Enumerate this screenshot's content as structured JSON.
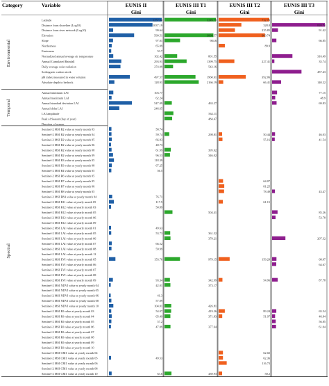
{
  "header": {
    "category": "Category",
    "variable": "Variable",
    "gini": "Gini"
  },
  "colors": {
    "EUNIS II": "#1f5fa6",
    "EUNIS III T1": "#2ca82c",
    "EUNIS III T2": "#f0601e",
    "EUNIS III T3": "#8e1e8e"
  },
  "categories": [
    {
      "name": "Environmental",
      "start": 0,
      "end": 13
    },
    {
      "name": "Temporal",
      "start": 14,
      "end": 20
    },
    {
      "name": "Spectral",
      "start": 21,
      "end": 68
    }
  ],
  "chart_data": {
    "type": "bar",
    "orientation": "horizontal",
    "value_label": "Gini",
    "categories": [
      "Latitude",
      "Distance from shoreline (Log10)",
      "Distance from river network (Log10)",
      "Elevation",
      "Slope",
      "Northerness",
      "Easterness",
      "Normalized annual average air temperature",
      "Annual Cumulated Rainfall",
      "Daily average solar radiation",
      "Soilorganic carbon stock",
      "pH index measured in water solution",
      "Absolute depth to bedrock",
      "",
      "Annual minimum LAI",
      "Annual maximum LAI",
      "Annual standard deviation LAI",
      "Annual delta LAI",
      "LAI amplitude",
      "Peak of Season (day of year)",
      "Duration of season",
      "Sentinel-2 MSI B2 value at yearly month 03",
      "Sentinel-2 MSI B2 value at yearly month 04",
      "Sentinel-2 MSI B2 value at yearly month 05",
      "Sentinel-2 MSI B2 value at yearly month 06",
      "Sentinel-2 MSI B2 value at yearly month 08",
      "Sentinel-2 MSI B2 value at yearly month 09",
      "Sentinel-2 MSI B3 value at yearly month 05",
      "Sentinel-2 MSI B3 value at yearly month 08",
      "Sentinel-2 MSI B4 value at yearly month 05",
      "Sentinel-2 MSI B6 value at yearly month 05",
      "Sentinel-2 MSI B7 value at yearly month 05",
      "Sentinel-2 MSI B7 value at yearly month 06",
      "Sentinel-2 MSI B8 value at yearly month 05",
      "Sentinel-2 MSI B8A value at yearly month 04",
      "Sentinel-2 MSI B11 value at yearly month 05",
      "Sentinel-2 MSI B12 value at yearly month 03",
      "Sentinel-2 MSI B12 value at yearly month 05",
      "Sentinel-2 MSI B12 value at yearly month 06",
      "Sentinel-2 MSI B12 value at yearly month 09",
      "Sentinel-2 MSI LAI value at yearly month 01",
      "Sentinel-2 MSI LAI value at yearly month 05",
      "Sentinel-2 MSI LAI value at yearly month 06",
      "Sentinel-2 MSI LAI value at yearly month 07",
      "Sentinel-2 MSI LAI value at yearly month 08",
      "Sentinel-2 MSI LAI value at yearly month 12",
      "Sentinel-2 MSI EVI value at yearly month 05",
      "Sentinel-2 MSI EVI value at yearly month 06",
      "Sentinel-2 MSI EVI value at yearly month 07",
      "Sentinel-2 MSI EVI value at yearly month 08",
      "Sentinel-2 MSI EVI value at yearly month 09",
      "Sentinel-2 MSI NDVI value at yearly month 04",
      "Sentinel-2 MSI NDVI value at yearly month 05",
      "Sentinel-2 MSI NDVI value at yearly month 06",
      "Sentinel-2 MSI NDVI value at yearly month 08",
      "Sentinel-2 MSI NDVI value at yearly month 10",
      "Sentinel-2 MSI RI value at yearly month 03",
      "Sentinel-2 MSI RI value at yearly month 04",
      "Sentinel-2 MSI RI value at yearly month 05",
      "Sentinel-2 MSI RI value at yearly month 06",
      "Sentinel-2 MSI RI value at yearly month 07",
      "Sentinel-2 MSI RI value at yearly month 08",
      "Sentinel-2 MSI RI value at yearly month 09",
      "Sentinel-2 MSI RI value at yearly month 10",
      "Sentinel-2 MSI CRI1 value at yearly month 04",
      "Sentinel-2 MSI CRI1 value at yearly month 05",
      "Sentinel-2 MSI CRI1 value at yearly month 06",
      "Sentinel-2 MSI CRI1 value at yearly month 08",
      "Sentinel-2 MSI CRI1 value at yearly month 10"
    ],
    "series": [
      {
        "name": "EUNIS II",
        "max": 1257.04,
        "values": [
          1257.04,
          1037.19,
          99.64,
          599.51,
          97.01,
          65.09,
          53.7,
          102.42,
          293.91,
          274.09,
          null,
          497.57,
          128.91,
          null,
          103.77,
          62.24,
          547.09,
          246.65,
          null,
          null,
          null,
          58.74,
          59.74,
          66.83,
          48.73,
          61.99,
          96.53,
          118.39,
          67.25,
          56.5,
          null,
          null,
          null,
          null,
          76.71,
          117.5,
          50.89,
          null,
          null,
          null,
          49.63,
          53.73,
          null,
          66.52,
          59.99,
          null,
          153.76,
          null,
          null,
          null,
          93.34,
          42.01,
          null,
          41.3,
          57.09,
          104.01,
          54.07,
          65.49,
          57.2,
          47.09,
          null,
          null,
          null,
          null,
          null,
          49.53,
          null,
          null,
          63.6
        ]
      },
      {
        "name": "EUNIS III T1",
        "max": 3249.79,
        "values": [
          3249.79,
          null,
          null,
          3094.57,
          984.6,
          null,
          null,
          801.55,
          1399.75,
          542.16,
          null,
          1960.61,
          2166.19,
          null,
          null,
          null,
          463.27,
          null,
          562.11,
          484.47,
          null,
          null,
          298.81,
          null,
          null,
          395.62,
          346.02,
          null,
          null,
          null,
          null,
          null,
          null,
          null,
          null,
          null,
          null,
          504.41,
          null,
          null,
          null,
          361.32,
          379.21,
          null,
          null,
          null,
          979.15,
          null,
          null,
          null,
          342.99,
          373.17,
          null,
          null,
          null,
          426.81,
          419.26,
          371.83,
          null,
          377.64,
          null,
          null,
          null,
          null,
          null,
          null,
          null,
          null,
          439.93
        ]
      },
      {
        "name": "EUNIS III T2",
        "max": 732.79,
        "values": [
          732.79,
          328.8,
          235.85,
          669.74,
          null,
          89.9,
          null,
          null,
          227.41,
          null,
          null,
          392.06,
          66.41,
          null,
          null,
          null,
          null,
          null,
          null,
          null,
          null,
          null,
          50.44,
          55.16,
          null,
          null,
          null,
          null,
          null,
          null,
          null,
          64.07,
          81.25,
          78.49,
          null,
          61.15,
          null,
          null,
          null,
          null,
          null,
          null,
          null,
          null,
          null,
          null,
          159.29,
          null,
          null,
          null,
          54.96,
          null,
          null,
          null,
          null,
          null,
          89.24,
          51.97,
          null,
          null,
          null,
          null,
          null,
          null,
          62.02,
          62.36,
          116.73,
          null,
          50.2
        ]
      },
      {
        "name": "EUNIS III T3",
        "max": 820.74,
        "values": [
          null,
          820.74,
          91.42,
          null,
          66.85,
          null,
          null,
          316.49,
          35.74,
          null,
          457.43,
          null,
          140.22,
          null,
          77.15,
          48.9,
          69.83,
          null,
          null,
          null,
          null,
          null,
          46.03,
          41.54,
          null,
          null,
          null,
          null,
          null,
          null,
          null,
          null,
          null,
          43.47,
          null,
          null,
          null,
          85.26,
          53.78,
          null,
          null,
          null,
          207.32,
          null,
          null,
          null,
          68.07,
          64.67,
          null,
          null,
          87.78,
          null,
          null,
          null,
          null,
          null,
          65.54,
          46.84,
          56.85,
          61.04,
          null,
          null,
          null,
          null,
          null,
          null,
          null,
          null,
          null
        ]
      }
    ]
  }
}
